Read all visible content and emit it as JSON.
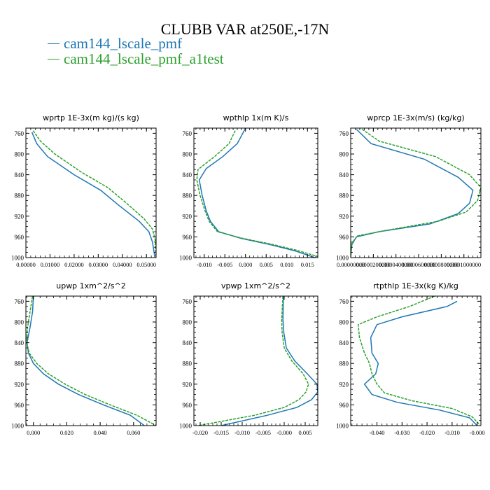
{
  "title": "CLUBB VAR at250E,-17N",
  "legend": [
    {
      "label": "cam144_lscale_pmf",
      "color": "#1f77b4",
      "dash": false
    },
    {
      "label": "cam144_lscale_pmf_a1test",
      "color": "#2ca02c",
      "dash": true
    }
  ],
  "chart_data": [
    {
      "type": "line",
      "title": "wprtp  1E-3x(m kg)/(s kg)",
      "xlim": [
        0.0,
        0.054
      ],
      "ylim": [
        1000,
        750
      ],
      "xticks": [
        0.0,
        0.01,
        0.02,
        0.03,
        0.04,
        0.05
      ],
      "xtick_labels": [
        "0.00000",
        "0.01000",
        "0.02000",
        "0.03000",
        "0.04000",
        "0.05000"
      ],
      "yticks": [
        760,
        800,
        840,
        880,
        920,
        960,
        1000
      ],
      "series": [
        {
          "name": "cam144_lscale_pmf",
          "color": "#1f77b4",
          "x": [
            0.0025,
            0.0045,
            0.009,
            0.02,
            0.031,
            0.038,
            0.047,
            0.051,
            0.0525,
            0.0535
          ],
          "y": [
            758,
            780,
            805,
            840,
            870,
            897,
            930,
            950,
            970,
            1000
          ]
        },
        {
          "name": "cam144_lscale_pmf_a1test",
          "color": "#2ca02c",
          "x": [
            0.003,
            0.006,
            0.012,
            0.023,
            0.034,
            0.041,
            0.049,
            0.0525,
            0.0536,
            0.054
          ],
          "y": [
            755,
            775,
            800,
            835,
            865,
            892,
            925,
            945,
            965,
            1000
          ]
        }
      ]
    },
    {
      "type": "line",
      "title": "wpthlp  1x(m K)/s",
      "xlim": [
        -0.0125,
        0.0175
      ],
      "ylim": [
        1000,
        750
      ],
      "xticks": [
        -0.01,
        -0.005,
        0.0,
        0.005,
        0.01,
        0.015
      ],
      "xtick_labels": [
        "-0.010",
        "-0.005",
        "0.000",
        "0.005",
        "0.010",
        "0.015"
      ],
      "yticks": [
        760,
        800,
        840,
        880,
        920,
        960,
        1000
      ],
      "series": [
        {
          "name": "cam144_lscale_pmf",
          "color": "#1f77b4",
          "x": [
            0.0,
            -0.002,
            -0.0055,
            -0.0095,
            -0.0112,
            -0.0105,
            -0.0095,
            -0.0085,
            -0.0065,
            -0.001,
            0.006,
            0.012,
            0.0168
          ],
          "y": [
            750,
            780,
            805,
            828,
            850,
            880,
            910,
            930,
            950,
            963,
            975,
            987,
            1000
          ]
        },
        {
          "name": "cam144_lscale_pmf_a1test",
          "color": "#2ca02c",
          "x": [
            -0.0025,
            -0.004,
            -0.0075,
            -0.0115,
            -0.0118,
            -0.011,
            -0.0098,
            -0.0088,
            -0.0068,
            -0.0012,
            0.0062,
            0.0125,
            0.0175
          ],
          "y": [
            755,
            780,
            805,
            830,
            850,
            880,
            910,
            930,
            950,
            962,
            974,
            986,
            998
          ]
        }
      ]
    },
    {
      "type": "line",
      "title": "wprcp  1E-3x(m/s) (kg/kg)",
      "xlim": [
        0.0,
        0.000115
      ],
      "ylim": [
        1000,
        750
      ],
      "xticks": [
        0.0,
        2e-05,
        4e-05,
        6e-05,
        8e-05,
        0.0001
      ],
      "xtick_labels": [
        "0.00000000",
        "0.0000200000",
        "0.0000400000",
        "0.0000600000",
        "0.0000800000",
        "0.0001000000"
      ],
      "yticks": [
        760,
        800,
        840,
        880,
        920,
        960,
        1000
      ],
      "series": [
        {
          "name": "cam144_lscale_pmf",
          "color": "#1f77b4",
          "x": [
            5e-06,
            1.8e-05,
            6.5e-05,
            9.5e-05,
            0.000108,
            0.000105,
            9.5e-05,
            7e-05,
            2.5e-05,
            5e-06,
            1e-06,
            0.0
          ],
          "y": [
            752,
            780,
            810,
            845,
            870,
            895,
            915,
            935,
            950,
            960,
            975,
            1000
          ]
        },
        {
          "name": "cam144_lscale_pmf_a1test",
          "color": "#2ca02c",
          "x": [
            1e-05,
            2.5e-05,
            7.5e-05,
            0.000105,
            0.000115,
            0.000112,
            0.000102,
            7.7e-05,
            3e-05,
            6e-06,
            1e-06,
            0.0
          ],
          "y": [
            752,
            775,
            805,
            840,
            865,
            890,
            912,
            930,
            948,
            958,
            972,
            1000
          ]
        }
      ]
    },
    {
      "type": "line",
      "title": "upwp  1xm^2/s^2",
      "xlim": [
        -0.0045,
        0.0735
      ],
      "ylim": [
        1000,
        750
      ],
      "xticks": [
        0.0,
        0.02,
        0.04,
        0.06
      ],
      "xtick_labels": [
        "0.000",
        "0.020",
        "0.040",
        "0.060"
      ],
      "yticks": [
        760,
        800,
        840,
        880,
        920,
        960,
        1000
      ],
      "series": [
        {
          "name": "cam144_lscale_pmf",
          "color": "#1f77b4",
          "x": [
            0.0,
            -0.0005,
            -0.002,
            -0.0038,
            -0.003,
            0.0,
            0.006,
            0.015,
            0.027,
            0.042,
            0.058,
            0.0665
          ],
          "y": [
            750,
            780,
            810,
            840,
            860,
            880,
            900,
            920,
            940,
            960,
            980,
            1000
          ]
        },
        {
          "name": "cam144_lscale_pmf_a1test",
          "color": "#2ca02c",
          "x": [
            -0.0005,
            -0.002,
            -0.0035,
            -0.004,
            -0.0025,
            0.002,
            0.009,
            0.019,
            0.031,
            0.046,
            0.062,
            0.0735
          ],
          "y": [
            750,
            780,
            810,
            840,
            860,
            880,
            900,
            920,
            940,
            960,
            980,
            1000
          ]
        }
      ]
    },
    {
      "type": "line",
      "title": "vpwp  1xm^2/s^2",
      "xlim": [
        -0.0215,
        0.008
      ],
      "ylim": [
        1000,
        750
      ],
      "xticks": [
        -0.02,
        -0.015,
        -0.01,
        -0.005,
        0.0,
        0.005
      ],
      "xtick_labels": [
        "-0.020",
        "-0.015",
        "-0.010",
        "-0.005",
        "-0.000",
        "0.005"
      ],
      "yticks": [
        760,
        800,
        840,
        880,
        920,
        960,
        1000
      ],
      "series": [
        {
          "name": "cam144_lscale_pmf",
          "color": "#1f77b4",
          "x": [
            -0.0002,
            -0.0003,
            -0.0001,
            0.0005,
            0.0025,
            0.0055,
            0.0078,
            0.008,
            0.0065,
            0.003,
            -0.004,
            -0.015
          ],
          "y": [
            750,
            795,
            820,
            850,
            875,
            900,
            920,
            935,
            950,
            965,
            980,
            1000
          ]
        },
        {
          "name": "cam144_lscale_pmf_a1test",
          "color": "#2ca02c",
          "x": [
            -0.0003,
            -0.0006,
            -0.0005,
            0.0,
            0.0018,
            0.0045,
            0.0058,
            0.0052,
            0.0035,
            0.0,
            -0.007,
            -0.0205
          ],
          "y": [
            750,
            795,
            820,
            850,
            875,
            900,
            920,
            935,
            950,
            965,
            980,
            1000
          ]
        }
      ]
    },
    {
      "type": "line",
      "title": "rtpthlp  1E-3x(kg K)/kg",
      "xlim": [
        -0.0505,
        0.0015
      ],
      "ylim": [
        1000,
        750
      ],
      "xticks": [
        -0.04,
        -0.03,
        -0.02,
        -0.01,
        0.0
      ],
      "xtick_labels": [
        "-0.040",
        "-0.030",
        "-0.020",
        "-0.010",
        "-0.000"
      ],
      "yticks": [
        760,
        800,
        840,
        880,
        920,
        960,
        1000
      ],
      "series": [
        {
          "name": "cam144_lscale_pmf",
          "color": "#1f77b4",
          "x": [
            -0.008,
            -0.012,
            -0.03,
            -0.04,
            -0.0425,
            -0.042,
            -0.0395,
            -0.0405,
            -0.045,
            -0.042,
            -0.032,
            -0.015,
            -0.003,
            0.0
          ],
          "y": [
            760,
            770,
            790,
            805,
            830,
            860,
            880,
            900,
            920,
            940,
            955,
            970,
            985,
            1000
          ]
        },
        {
          "name": "cam144_lscale_pmf_a1test",
          "color": "#2ca02c",
          "x": [
            -0.017,
            -0.027,
            -0.04,
            -0.0475,
            -0.047,
            -0.045,
            -0.043,
            -0.042,
            -0.04,
            -0.037,
            -0.026,
            -0.01,
            -0.002,
            0.001
          ],
          "y": [
            750,
            770,
            790,
            805,
            830,
            860,
            880,
            900,
            920,
            937,
            952,
            967,
            983,
            998
          ]
        }
      ]
    }
  ]
}
